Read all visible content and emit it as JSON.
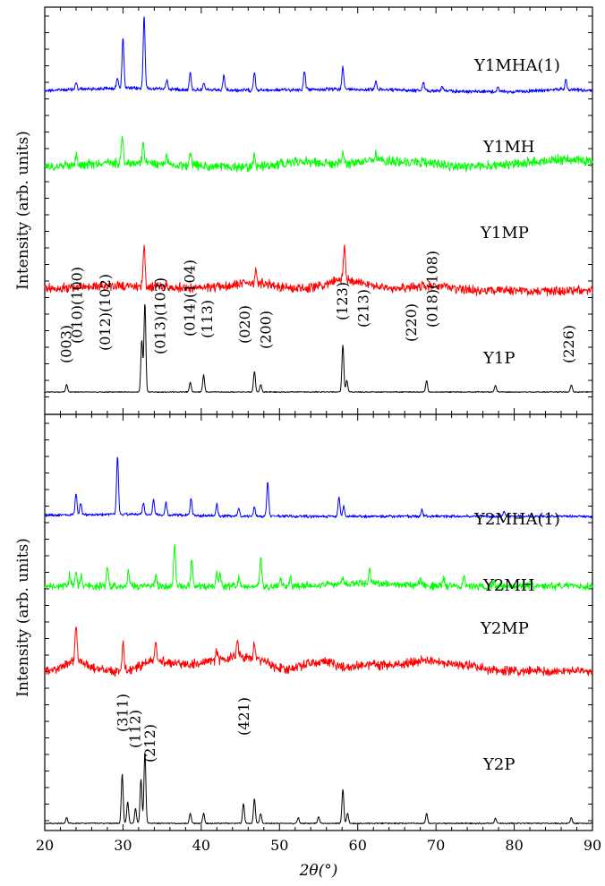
{
  "chart_data": [
    {
      "type": "line",
      "panel": "top",
      "ylabel": "Intensity (arb. units)",
      "xlim": [
        20,
        90
      ],
      "y_ticks_labeled": false,
      "grid": false,
      "series": [
        {
          "name": "Y1MHA(1)",
          "color": "#0000ff",
          "peaks": [
            [
              24.0,
              0.07
            ],
            [
              29.3,
              0.12
            ],
            [
              30.0,
              0.55
            ],
            [
              32.7,
              0.78
            ],
            [
              35.6,
              0.1
            ],
            [
              38.6,
              0.18
            ],
            [
              40.3,
              0.08
            ],
            [
              42.9,
              0.15
            ],
            [
              46.8,
              0.2
            ],
            [
              53.2,
              0.2
            ],
            [
              58.1,
              0.25
            ],
            [
              62.3,
              0.1
            ],
            [
              68.4,
              0.08
            ],
            [
              70.8,
              0.05
            ],
            [
              77.9,
              0.05
            ],
            [
              86.6,
              0.1
            ]
          ],
          "humps": [
            [
              30,
              0.04,
              8
            ],
            [
              58,
              0.03,
              10
            ],
            [
              86.5,
              0.03,
              3
            ]
          ]
        },
        {
          "name": "Y1MH",
          "color": "#00ff00",
          "peaks": [
            [
              24.0,
              0.1
            ],
            [
              29.9,
              0.3
            ],
            [
              32.6,
              0.2
            ],
            [
              35.6,
              0.08
            ],
            [
              38.6,
              0.12
            ],
            [
              46.8,
              0.12
            ],
            [
              58.1,
              0.1
            ],
            [
              62.3,
              0.08
            ],
            [
              68.4,
              0.05
            ]
          ],
          "humps": [
            [
              30,
              0.05,
              6
            ],
            [
              53,
              0.06,
              3
            ],
            [
              62,
              0.06,
              3
            ],
            [
              68,
              0.04,
              3
            ],
            [
              86.5,
              0.08,
              5
            ]
          ]
        },
        {
          "name": "Y1MP",
          "color": "#ff0000",
          "peaks": [
            [
              32.7,
              0.45
            ],
            [
              47.0,
              0.15
            ],
            [
              58.3,
              0.35
            ]
          ],
          "humps": [
            [
              30,
              0.05,
              8
            ],
            [
              47,
              0.08,
              3
            ],
            [
              58.5,
              0.12,
              2.5
            ],
            [
              68.5,
              0.05,
              3
            ]
          ]
        },
        {
          "name": "Y1P",
          "color": "#000000",
          "peaks": [
            [
              22.8,
              0.08
            ],
            [
              32.4,
              0.55
            ],
            [
              32.8,
              0.95
            ],
            [
              38.6,
              0.1
            ],
            [
              40.3,
              0.18
            ],
            [
              46.8,
              0.22
            ],
            [
              47.6,
              0.08
            ],
            [
              58.1,
              0.5
            ],
            [
              58.6,
              0.12
            ],
            [
              68.8,
              0.12
            ],
            [
              77.6,
              0.07
            ],
            [
              87.3,
              0.08
            ]
          ],
          "humps": []
        }
      ],
      "hkl_labels": [
        {
          "text": "(003)",
          "x": 22.8
        },
        {
          "text": "(010)(100)",
          "x": 24.2
        },
        {
          "text": "(012)(102)",
          "x": 27.8
        },
        {
          "text": "(013)(103)",
          "x": 34.8
        },
        {
          "text": "(014)(104)",
          "x": 38.6
        },
        {
          "text": "(113)",
          "x": 40.8
        },
        {
          "text": "(020)",
          "x": 45.6
        },
        {
          "text": "(200)",
          "x": 48.3
        },
        {
          "text": "(123)",
          "x": 58.1
        },
        {
          "text": "(213)",
          "x": 60.8
        },
        {
          "text": "(220)",
          "x": 66.9
        },
        {
          "text": "(018)(108)",
          "x": 69.6
        },
        {
          "text": "(226)",
          "x": 87.0
        }
      ]
    },
    {
      "type": "line",
      "panel": "bottom",
      "ylabel": "Intensity (arb. units)",
      "xlabel": "2θ(°)",
      "xlim": [
        20,
        90
      ],
      "x_ticks": [
        20,
        30,
        40,
        50,
        60,
        70,
        80,
        90
      ],
      "y_ticks_labeled": false,
      "grid": false,
      "series": [
        {
          "name": "Y2MHA(1)",
          "color": "#0000ff",
          "peaks": [
            [
              24.0,
              0.22
            ],
            [
              24.6,
              0.12
            ],
            [
              29.3,
              0.6
            ],
            [
              32.6,
              0.12
            ],
            [
              33.9,
              0.15
            ],
            [
              35.5,
              0.12
            ],
            [
              38.7,
              0.18
            ],
            [
              42.0,
              0.12
            ],
            [
              44.8,
              0.08
            ],
            [
              46.8,
              0.1
            ],
            [
              48.5,
              0.35
            ],
            [
              57.6,
              0.2
            ],
            [
              58.2,
              0.1
            ],
            [
              68.2,
              0.07
            ],
            [
              78.7,
              0.05
            ]
          ],
          "humps": [
            [
              29,
              0.02,
              8
            ]
          ]
        },
        {
          "name": "Y2MH",
          "color": "#00ff00",
          "peaks": [
            [
              23.2,
              0.12
            ],
            [
              24.0,
              0.15
            ],
            [
              24.7,
              0.1
            ],
            [
              28.0,
              0.2
            ],
            [
              30.7,
              0.16
            ],
            [
              34.2,
              0.12
            ],
            [
              36.6,
              0.45
            ],
            [
              38.8,
              0.28
            ],
            [
              42.0,
              0.15
            ],
            [
              42.4,
              0.12
            ],
            [
              44.8,
              0.08
            ],
            [
              47.6,
              0.3
            ],
            [
              50.2,
              0.07
            ],
            [
              51.4,
              0.08
            ],
            [
              58.0,
              0.07
            ],
            [
              61.5,
              0.13
            ],
            [
              68.0,
              0.07
            ],
            [
              71.0,
              0.08
            ],
            [
              73.6,
              0.1
            ],
            [
              77.4,
              0.05
            ],
            [
              82.2,
              0.06
            ]
          ],
          "humps": [
            [
              61,
              0.03,
              4
            ]
          ]
        },
        {
          "name": "Y2MP",
          "color": "#ff0000",
          "peaks": [
            [
              24.0,
              0.38
            ],
            [
              30.0,
              0.3
            ],
            [
              34.2,
              0.2
            ],
            [
              44.6,
              0.17
            ],
            [
              46.8,
              0.15
            ],
            [
              42.0,
              0.1
            ]
          ],
          "humps": [
            [
              24,
              0.1,
              1.5
            ],
            [
              34.2,
              0.1,
              1.8
            ],
            [
              38.5,
              0.06,
              2
            ],
            [
              42,
              0.08,
              1.5
            ],
            [
              44.6,
              0.08,
              1.5
            ],
            [
              47,
              0.1,
              2
            ],
            [
              55,
              0.1,
              2
            ],
            [
              61.5,
              0.06,
              2
            ],
            [
              68.5,
              0.1,
              3
            ],
            [
              74,
              0.04,
              2
            ]
          ]
        },
        {
          "name": "Y2P",
          "color": "#000000",
          "peaks": [
            [
              22.8,
              0.06
            ],
            [
              29.9,
              0.5
            ],
            [
              30.6,
              0.22
            ],
            [
              31.6,
              0.15
            ],
            [
              32.3,
              0.45
            ],
            [
              32.8,
              0.72
            ],
            [
              38.6,
              0.1
            ],
            [
              40.3,
              0.1
            ],
            [
              45.4,
              0.2
            ],
            [
              46.8,
              0.25
            ],
            [
              47.6,
              0.1
            ],
            [
              52.4,
              0.06
            ],
            [
              55.0,
              0.07
            ],
            [
              58.1,
              0.35
            ],
            [
              58.7,
              0.1
            ],
            [
              68.8,
              0.1
            ],
            [
              77.6,
              0.05
            ],
            [
              87.3,
              0.06
            ]
          ],
          "humps": []
        }
      ],
      "hkl_labels": [
        {
          "text": "(311)",
          "x": 30.0
        },
        {
          "text": "(112)",
          "x": 31.6
        },
        {
          "text": "(212)",
          "x": 33.5
        },
        {
          "text": "(421)",
          "x": 45.5
        }
      ]
    }
  ]
}
